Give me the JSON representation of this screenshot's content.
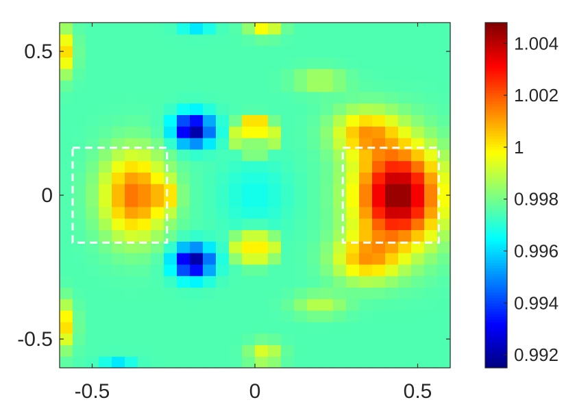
{
  "chart_data": {
    "type": "heatmap",
    "title": "",
    "xlabel": "",
    "ylabel": "",
    "xlim": [
      -0.6,
      0.6
    ],
    "ylim": [
      -0.6,
      0.6
    ],
    "x_ticks": [
      {
        "value": -0.5,
        "label": "-0.5"
      },
      {
        "value": 0,
        "label": "0"
      },
      {
        "value": 0.5,
        "label": "0.5"
      }
    ],
    "y_ticks": [
      {
        "value": 0.5,
        "label": "0.5"
      },
      {
        "value": 0,
        "label": "0"
      },
      {
        "value": -0.5,
        "label": "-0.5"
      }
    ],
    "colormap": "jet",
    "color_range": [
      0.9915,
      1.0048
    ],
    "colorbar_ticks": [
      {
        "value": 1.004,
        "label": "1.004"
      },
      {
        "value": 1.002,
        "label": "1.002"
      },
      {
        "value": 1.0,
        "label": "1"
      },
      {
        "value": 0.998,
        "label": "0.998"
      },
      {
        "value": 0.996,
        "label": "0.996"
      },
      {
        "value": 0.994,
        "label": "0.994"
      },
      {
        "value": 0.992,
        "label": "0.992"
      }
    ],
    "grid": false,
    "grid_size": 30,
    "field": {
      "background": 0.9975,
      "features": [
        {
          "kind": "blob",
          "x": -0.19,
          "y": 0.23,
          "sx": 0.06,
          "sy": 0.055,
          "amp": -0.0058
        },
        {
          "kind": "blob",
          "x": -0.19,
          "y": -0.23,
          "sx": 0.06,
          "sy": 0.055,
          "amp": -0.0058
        },
        {
          "kind": "blob",
          "x": 0.44,
          "y": 0.0,
          "sx": 0.13,
          "sy": 0.17,
          "amp": 0.0072
        },
        {
          "kind": "blob",
          "x": 0.34,
          "y": 0.22,
          "sx": 0.1,
          "sy": 0.08,
          "amp": 0.003
        },
        {
          "kind": "blob",
          "x": 0.34,
          "y": -0.22,
          "sx": 0.1,
          "sy": 0.08,
          "amp": 0.003
        },
        {
          "kind": "blob",
          "x": -0.37,
          "y": 0.0,
          "sx": 0.1,
          "sy": 0.15,
          "amp": 0.0042
        },
        {
          "kind": "blob",
          "x": -0.27,
          "y": 0.0,
          "sx": 0.035,
          "sy": 0.05,
          "amp": 0.0018
        },
        {
          "kind": "blob",
          "x": 0.0,
          "y": 0.23,
          "sx": 0.03,
          "sy": 0.03,
          "amp": 0.0038
        },
        {
          "kind": "blob",
          "x": 0.0,
          "y": -0.18,
          "sx": 0.03,
          "sy": 0.03,
          "amp": 0.0038
        },
        {
          "kind": "blob",
          "x": 0.0,
          "y": 0.0,
          "sx": 0.1,
          "sy": 0.12,
          "amp": -0.0008
        },
        {
          "kind": "ring",
          "x": 0.0,
          "y": 0.21,
          "r": 0.055,
          "w": 0.02,
          "amp": 0.0018
        },
        {
          "kind": "ring",
          "x": 0.0,
          "y": -0.18,
          "r": 0.055,
          "w": 0.02,
          "amp": 0.0018
        },
        {
          "kind": "blob",
          "x": 0.03,
          "y": 0.6,
          "sx": 0.05,
          "sy": 0.04,
          "amp": 0.003
        },
        {
          "kind": "blob",
          "x": 0.03,
          "y": -0.55,
          "sx": 0.05,
          "sy": 0.04,
          "amp": 0.002
        },
        {
          "kind": "blob",
          "x": -0.6,
          "y": 0.5,
          "sx": 0.04,
          "sy": 0.08,
          "amp": 0.0035
        },
        {
          "kind": "blob",
          "x": -0.6,
          "y": -0.45,
          "sx": 0.04,
          "sy": 0.08,
          "amp": 0.0035
        },
        {
          "kind": "blob",
          "x": -0.18,
          "y": 0.6,
          "sx": 0.05,
          "sy": 0.03,
          "amp": -0.002
        },
        {
          "kind": "blob",
          "x": -0.42,
          "y": -0.6,
          "sx": 0.05,
          "sy": 0.03,
          "amp": -0.002
        },
        {
          "kind": "blob",
          "x": 0.2,
          "y": 0.4,
          "sx": 0.08,
          "sy": 0.04,
          "amp": 0.0014
        },
        {
          "kind": "blob",
          "x": 0.2,
          "y": -0.38,
          "sx": 0.08,
          "sy": 0.04,
          "amp": 0.0014
        }
      ]
    },
    "annotations": [
      {
        "kind": "dashed-rect",
        "x0": -0.56,
        "x1": -0.27,
        "y0": -0.165,
        "y1": 0.165,
        "color": "#ffffff"
      },
      {
        "kind": "dashed-rect",
        "x0": 0.27,
        "x1": 0.565,
        "y0": -0.165,
        "y1": 0.165,
        "color": "#ffffff"
      }
    ]
  }
}
